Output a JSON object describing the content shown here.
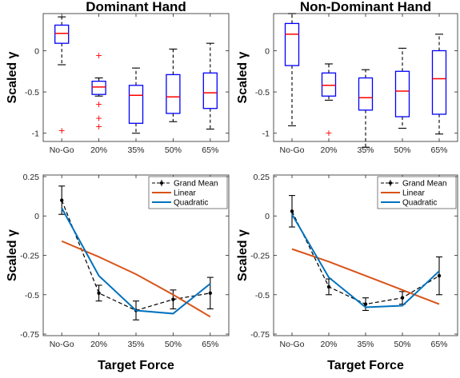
{
  "colors": {
    "box": "#0000ff",
    "median": "#ff0000",
    "outlier": "#ff0000",
    "whisker": "#000000",
    "mean": "#000000",
    "linear": "#d95319",
    "quadratic": "#0072bd"
  },
  "chart_data": [
    {
      "id": "dominant-box",
      "type": "box",
      "title": "Dominant Hand",
      "ylabel": "Scaled γ",
      "xlabel": "",
      "categories": [
        "No-Go",
        "20%",
        "35%",
        "50%",
        "65%"
      ],
      "ylim": [
        -1.1,
        0.45
      ],
      "yticks": [
        -1,
        -0.5,
        0
      ],
      "ytick_labels": [
        "-1",
        "-0.5",
        "0"
      ],
      "boxes": [
        {
          "min": -0.17,
          "q1": 0.09,
          "median": 0.21,
          "q3": 0.31,
          "max": 0.41,
          "outliers": [
            -0.97
          ]
        },
        {
          "min": -0.55,
          "q1": -0.53,
          "median": -0.44,
          "q3": -0.37,
          "max": -0.33,
          "outliers": [
            -0.06,
            -0.65,
            -0.82,
            -0.92
          ]
        },
        {
          "min": -1.0,
          "q1": -0.88,
          "median": -0.54,
          "q3": -0.42,
          "max": -0.21,
          "outliers": []
        },
        {
          "min": -0.86,
          "q1": -0.76,
          "median": -0.56,
          "q3": -0.29,
          "max": 0.02,
          "outliers": []
        },
        {
          "min": -0.95,
          "q1": -0.7,
          "median": -0.51,
          "q3": -0.27,
          "max": 0.09,
          "outliers": []
        }
      ]
    },
    {
      "id": "nondominant-box",
      "type": "box",
      "title": "Non-Dominant Hand",
      "ylabel": "Scaled γ",
      "xlabel": "",
      "categories": [
        "No-Go",
        "20%",
        "35%",
        "50%",
        "65%"
      ],
      "ylim": [
        -1.1,
        0.45
      ],
      "yticks": [
        -1,
        -0.5,
        0
      ],
      "ytick_labels": [
        "-1",
        "-0.5",
        "0"
      ],
      "boxes": [
        {
          "min": -0.91,
          "q1": -0.18,
          "median": 0.2,
          "q3": 0.33,
          "max": 0.45,
          "outliers": []
        },
        {
          "min": -0.6,
          "q1": -0.55,
          "median": -0.42,
          "q3": -0.27,
          "max": -0.16,
          "outliers": [
            -1.0
          ]
        },
        {
          "min": -1.17,
          "q1": -0.72,
          "median": -0.57,
          "q3": -0.33,
          "max": -0.23,
          "outliers": []
        },
        {
          "min": -0.94,
          "q1": -0.8,
          "median": -0.49,
          "q3": -0.25,
          "max": 0.03,
          "outliers": []
        },
        {
          "min": -1.01,
          "q1": -0.77,
          "median": -0.34,
          "q3": 0.0,
          "max": 0.2,
          "outliers": []
        }
      ]
    },
    {
      "id": "dominant-fit",
      "type": "line",
      "title": "",
      "ylabel": "Scaled γ",
      "xlabel": "Target Force",
      "categories": [
        "No-Go",
        "20%",
        "35%",
        "50%",
        "65%"
      ],
      "ylim": [
        -0.76,
        0.26
      ],
      "yticks": [
        0.25,
        0,
        -0.25,
        -0.5,
        -0.75
      ],
      "ytick_labels": [
        "0.25",
        "0",
        "-0.25",
        "-0.5",
        "-0.75"
      ],
      "legend": {
        "placement": "top-right",
        "entries": [
          "Grand Mean",
          "Linear",
          "Quadratic"
        ]
      },
      "series": [
        {
          "name": "Grand Mean",
          "style": "dashed-errorbar",
          "values": [
            0.1,
            -0.49,
            -0.6,
            -0.53,
            -0.49
          ],
          "error": [
            0.09,
            0.05,
            0.06,
            0.06,
            0.1
          ]
        },
        {
          "name": "Linear",
          "style": "solid",
          "values": [
            -0.16,
            -0.26,
            -0.37,
            -0.5,
            -0.64
          ]
        },
        {
          "name": "Quadratic",
          "style": "solid",
          "values": [
            0.05,
            -0.38,
            -0.6,
            -0.62,
            -0.43
          ]
        }
      ]
    },
    {
      "id": "nondominant-fit",
      "type": "line",
      "title": "",
      "ylabel": "Scaled γ",
      "xlabel": "Target Force",
      "categories": [
        "No-Go",
        "20%",
        "35%",
        "50%",
        "65%"
      ],
      "ylim": [
        -0.76,
        0.26
      ],
      "yticks": [
        0.25,
        0,
        -0.25,
        -0.5,
        -0.75
      ],
      "ytick_labels": [
        "0.25",
        "0",
        "-0.25",
        "-0.5",
        "-0.75"
      ],
      "legend": {
        "placement": "top-right",
        "entries": [
          "Grand Mean",
          "Linear",
          "Quadratic"
        ]
      },
      "series": [
        {
          "name": "Grand Mean",
          "style": "dashed-errorbar",
          "values": [
            0.03,
            -0.45,
            -0.56,
            -0.52,
            -0.38
          ],
          "error": [
            0.1,
            0.05,
            0.04,
            0.04,
            0.12
          ]
        },
        {
          "name": "Linear",
          "style": "solid",
          "values": [
            -0.21,
            -0.29,
            -0.38,
            -0.47,
            -0.56
          ]
        },
        {
          "name": "Quadratic",
          "style": "solid",
          "values": [
            0.01,
            -0.39,
            -0.58,
            -0.57,
            -0.35
          ]
        }
      ]
    }
  ]
}
